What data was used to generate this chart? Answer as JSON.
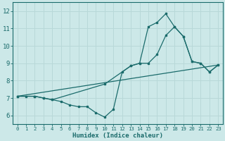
{
  "xlabel": "Humidex (Indice chaleur)",
  "background_color": "#cce8e8",
  "line_color": "#1a6b6b",
  "grid_color": "#b8d8d8",
  "xlim": [
    -0.5,
    23.5
  ],
  "ylim": [
    5.5,
    12.5
  ],
  "yticks": [
    6,
    7,
    8,
    9,
    10,
    11,
    12
  ],
  "xticks": [
    0,
    1,
    2,
    3,
    4,
    5,
    6,
    7,
    8,
    9,
    10,
    11,
    12,
    13,
    14,
    15,
    16,
    17,
    18,
    19,
    20,
    21,
    22,
    23
  ],
  "line1_x": [
    0,
    1,
    2,
    3,
    4,
    5,
    6,
    7,
    8,
    9,
    10,
    11,
    12,
    13,
    14,
    15,
    16,
    17,
    18,
    19,
    20,
    21,
    22,
    23
  ],
  "line1_y": [
    7.1,
    7.1,
    7.1,
    7.0,
    6.9,
    6.8,
    6.6,
    6.5,
    6.5,
    6.15,
    5.9,
    6.35,
    8.5,
    8.85,
    9.0,
    11.1,
    11.35,
    11.85,
    11.1,
    10.55,
    9.1,
    9.0,
    8.5,
    8.9
  ],
  "line2_x": [
    0,
    2,
    3,
    4,
    10,
    13,
    14,
    15,
    16,
    17,
    18,
    19,
    20,
    21,
    22,
    23
  ],
  "line2_y": [
    7.1,
    7.1,
    7.0,
    6.9,
    7.8,
    8.85,
    9.0,
    9.0,
    9.5,
    10.6,
    11.1,
    10.55,
    9.1,
    9.0,
    8.5,
    8.9
  ],
  "line3_x": [
    0,
    23
  ],
  "line3_y": [
    7.1,
    8.9
  ]
}
